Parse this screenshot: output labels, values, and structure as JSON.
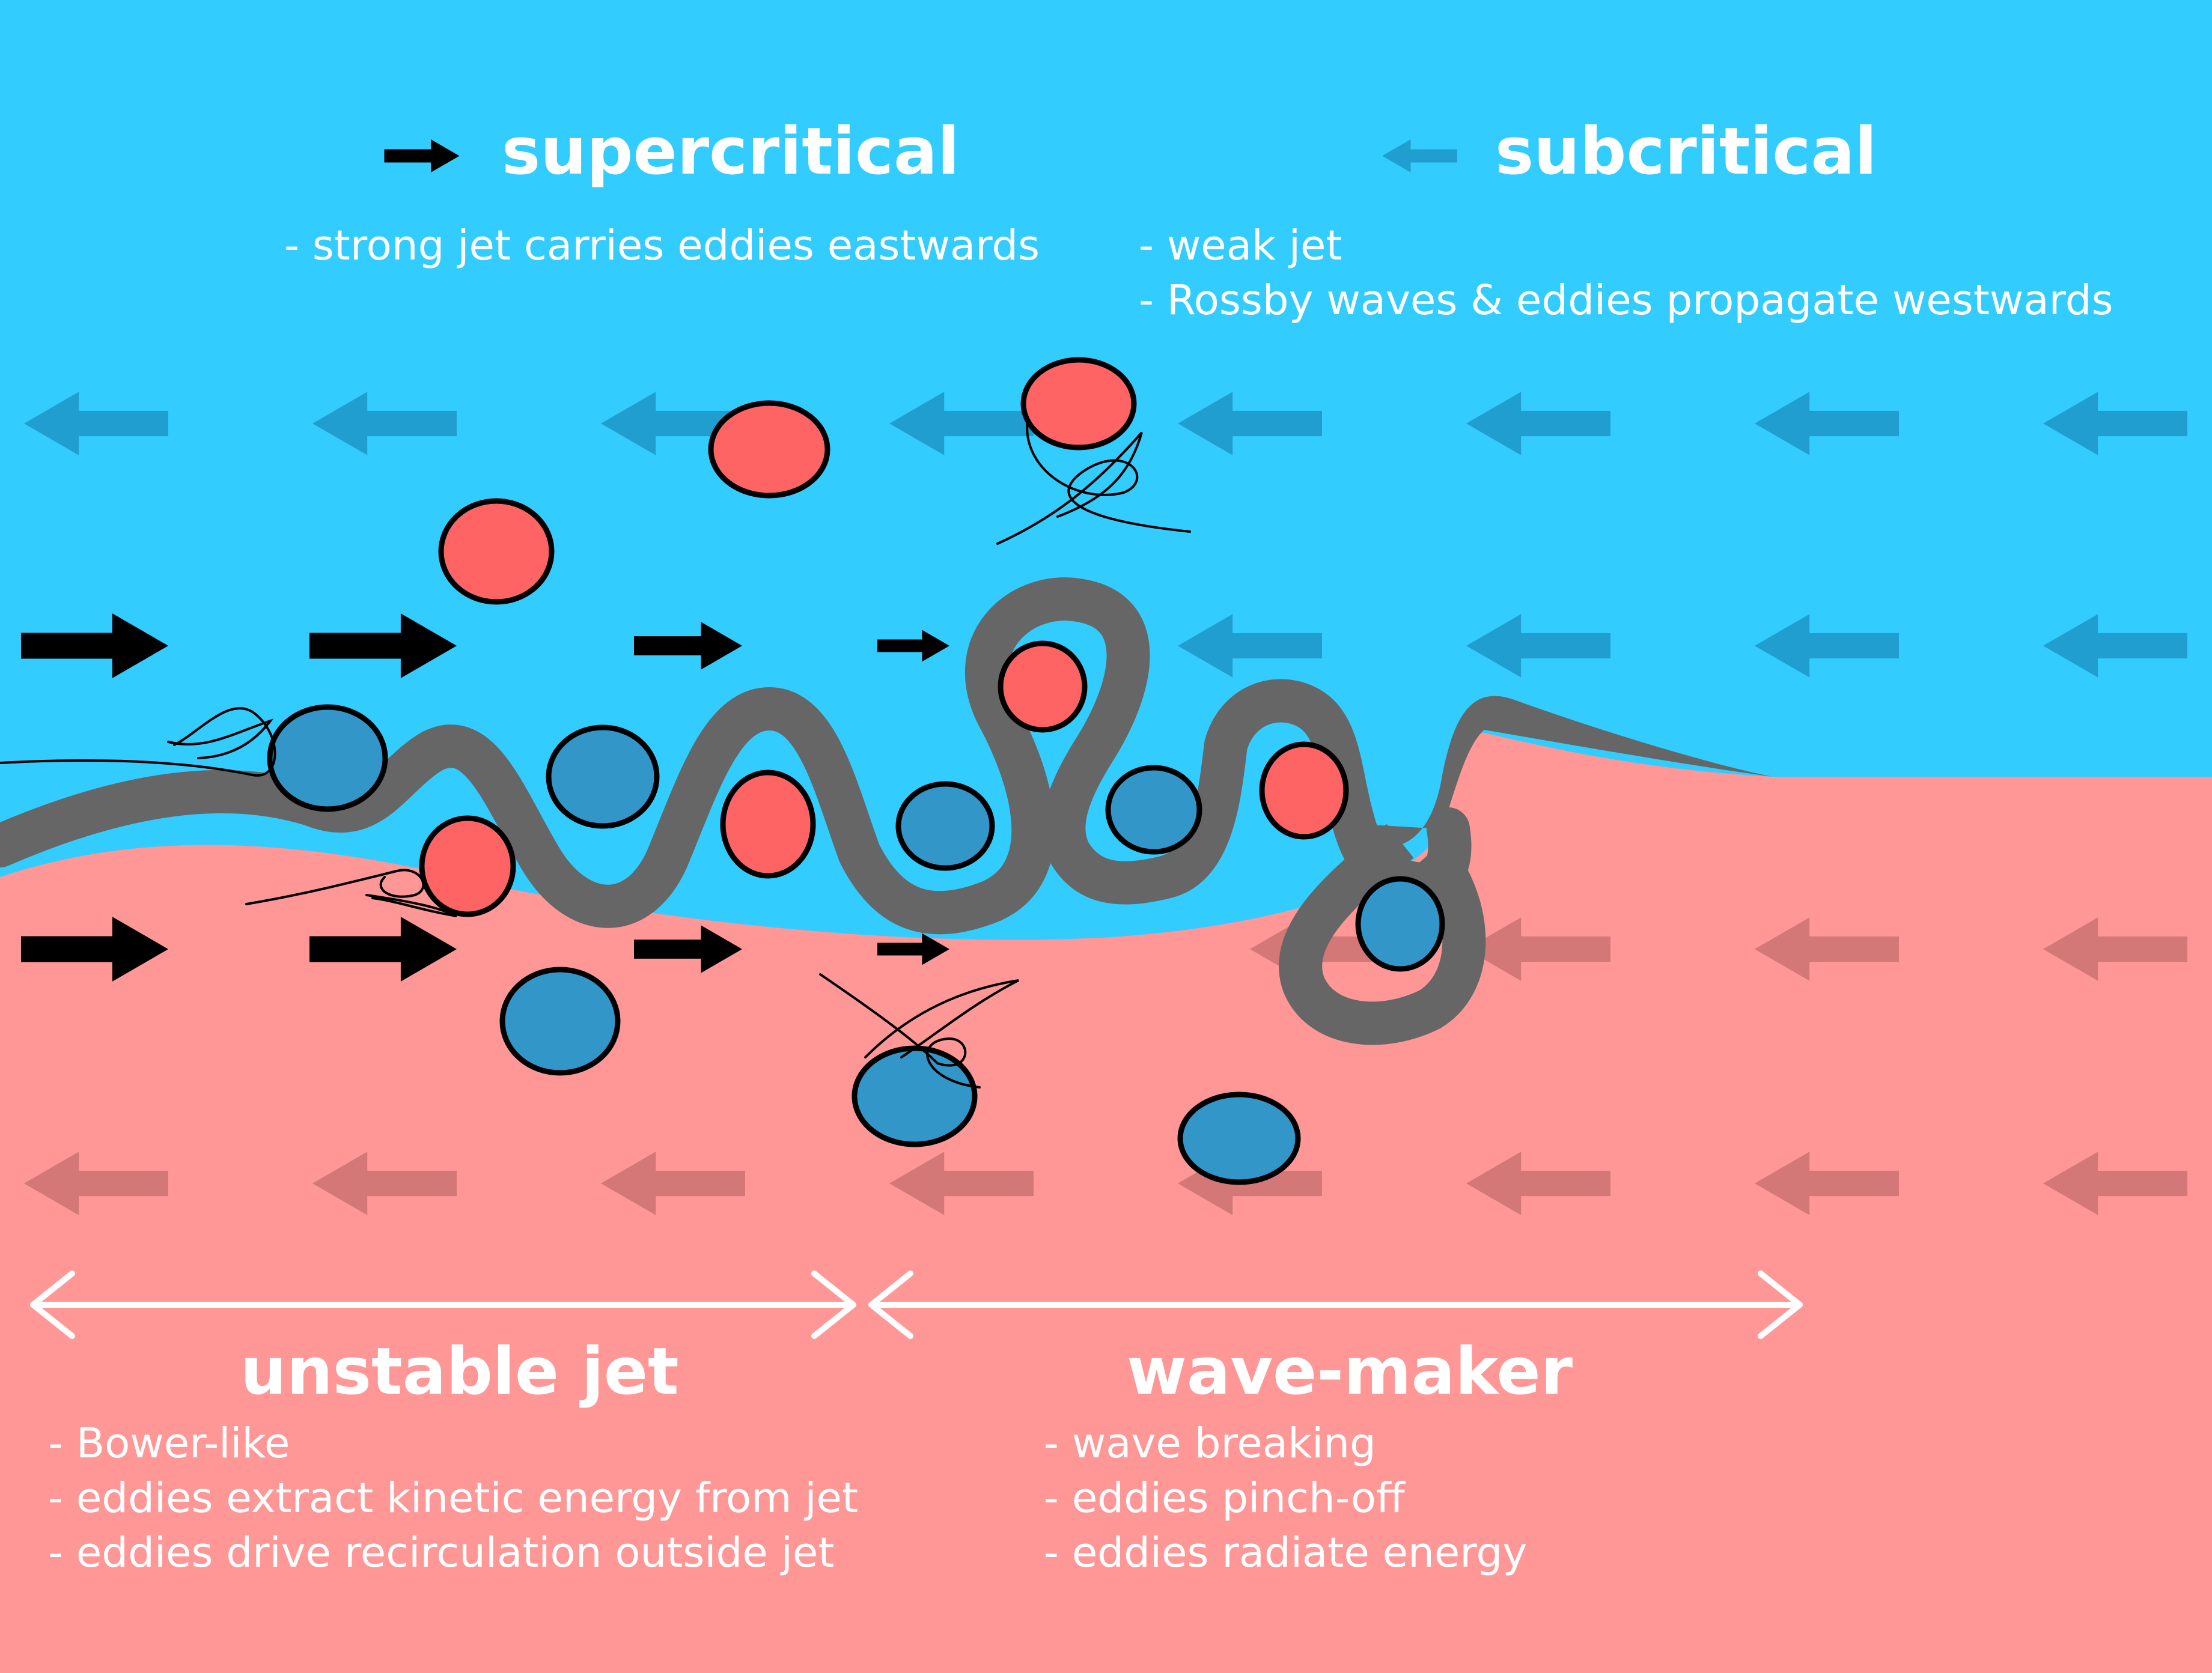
{
  "regions": {
    "supercritical": {
      "title": "supercritical",
      "notes": [
        "- strong jet carries eddies eastwards"
      ]
    },
    "subcritical": {
      "title": "subcritical",
      "notes": [
        "- weak jet",
        "- Rossby waves & eddies propagate westwards"
      ]
    },
    "unstable_jet": {
      "title": "unstable jet",
      "notes": [
        "- Bower-like",
        "- eddies extract kinetic energy from jet",
        "- eddies drive recirculation outside jet"
      ]
    },
    "wave_maker": {
      "title": "wave-maker",
      "notes": [
        "- wave breaking",
        "- eddies pinch-off",
        "- eddies radiate energy"
      ]
    }
  },
  "colors": {
    "north_water": "#33ccff",
    "south_water": "#ff9797",
    "warm_eddy": "#ff6464",
    "cold_eddy": "#3396c8",
    "jet": "#666666",
    "arrow_strong": "#000000",
    "text": "#ffffff"
  },
  "icons": {
    "eastward_arrow": "right-arrow-icon",
    "westward_arrow": "left-arrow-icon",
    "span_arrow": "double-headed-arrow-icon"
  }
}
